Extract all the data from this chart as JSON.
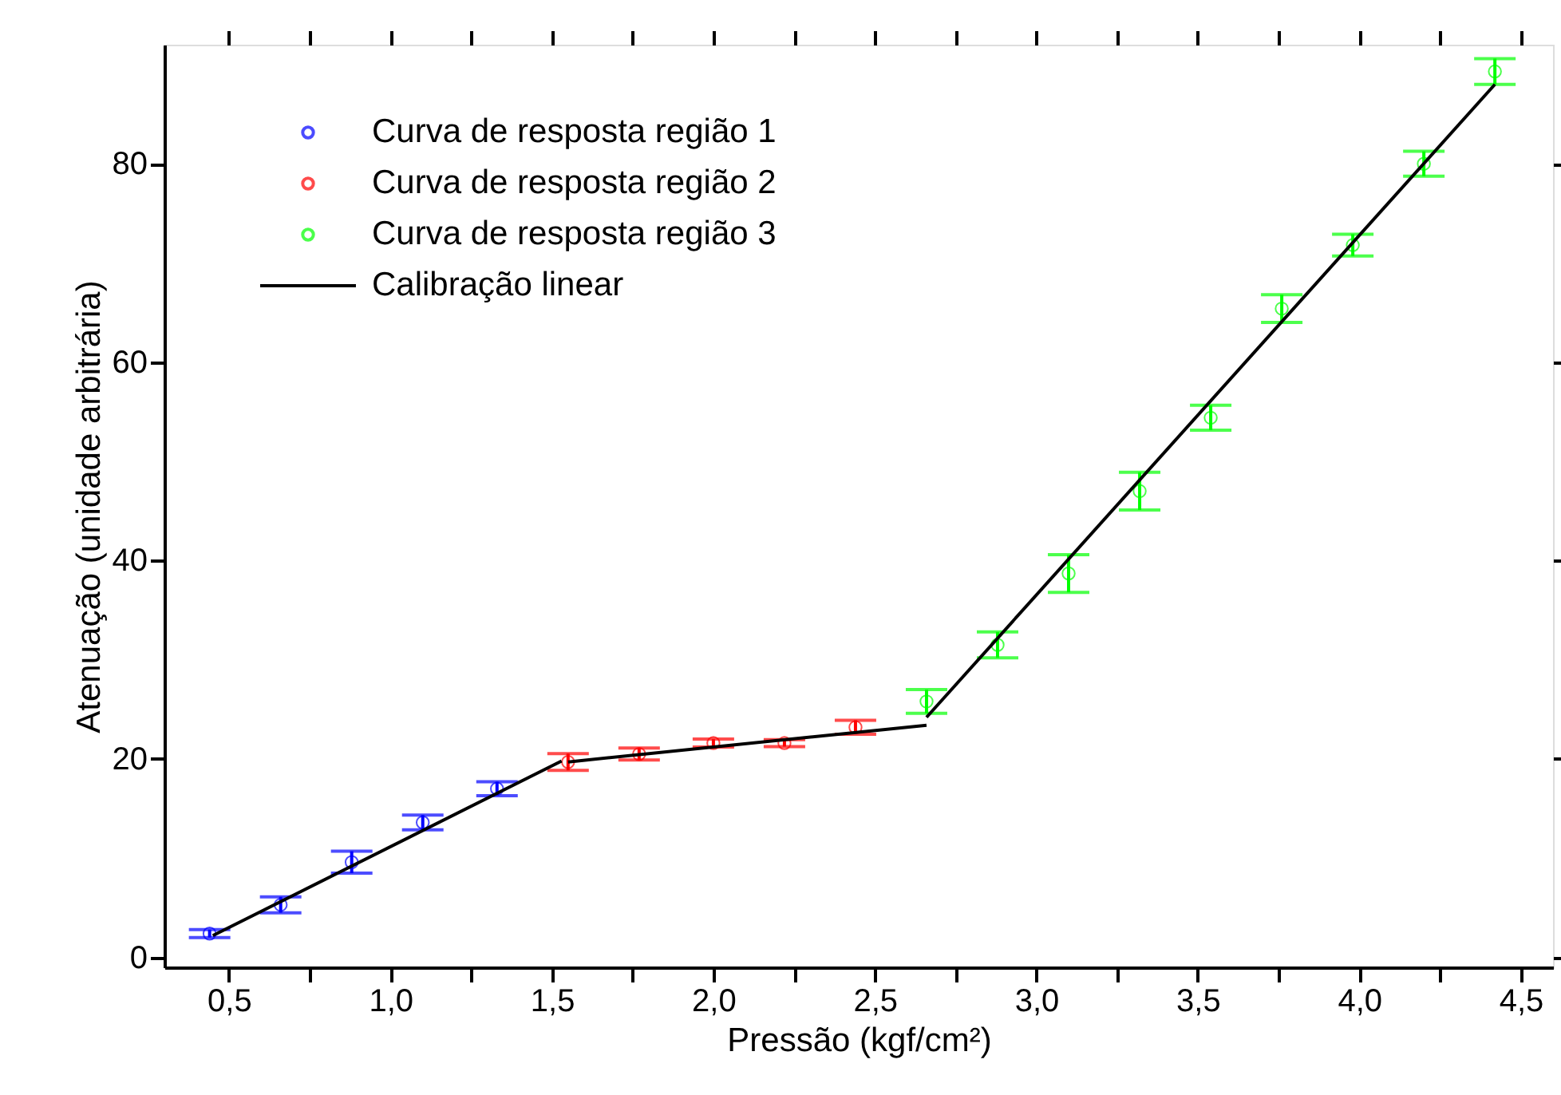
{
  "chart_data": {
    "type": "scatter",
    "xlabel": "Pressão (kgf/cm²)",
    "ylabel": "Atenuação (unidade arbitrária)",
    "xlim": [
      0.3,
      4.6
    ],
    "ylim": [
      -1,
      92
    ],
    "xticks": [
      {
        "value": 0.5,
        "label": "0,5"
      },
      {
        "value": 0.75,
        "label": null
      },
      {
        "value": 1.0,
        "label": "1,0"
      },
      {
        "value": 1.25,
        "label": null
      },
      {
        "value": 1.5,
        "label": "1,5"
      },
      {
        "value": 1.75,
        "label": null
      },
      {
        "value": 2.0,
        "label": "2,0"
      },
      {
        "value": 2.25,
        "label": null
      },
      {
        "value": 2.5,
        "label": "2,5"
      },
      {
        "value": 2.75,
        "label": null
      },
      {
        "value": 3.0,
        "label": "3,0"
      },
      {
        "value": 3.25,
        "label": null
      },
      {
        "value": 3.5,
        "label": "3,5"
      },
      {
        "value": 3.75,
        "label": null
      },
      {
        "value": 4.0,
        "label": "4,0"
      },
      {
        "value": 4.25,
        "label": null
      },
      {
        "value": 4.5,
        "label": "4,5"
      }
    ],
    "yticks": [
      0,
      20,
      40,
      60,
      80
    ],
    "grid": false,
    "legend": "top left",
    "marker": "circle",
    "series": [
      {
        "name": "Curva de resposta região 1",
        "color": "#0000ff",
        "x": [
          0.44,
          0.66,
          0.88,
          1.1,
          1.33
        ],
        "values": [
          2.4,
          5.3,
          9.6,
          13.6,
          17.0
        ],
        "errors": [
          0.4,
          0.8,
          1.1,
          0.75,
          0.7
        ]
      },
      {
        "name": "Curva de resposta região 2",
        "color": "#ff0000",
        "x": [
          1.55,
          1.77,
          2.0,
          2.22,
          2.44
        ],
        "values": [
          19.7,
          20.5,
          21.6,
          21.6,
          23.2
        ],
        "errors": [
          0.85,
          0.6,
          0.4,
          0.35,
          0.7
        ]
      },
      {
        "name": "Curva de resposta região 3",
        "color": "#00ff00",
        "x": [
          2.66,
          2.88,
          3.1,
          3.32,
          3.54,
          3.76,
          3.98,
          4.2,
          4.42
        ],
        "values": [
          25.8,
          31.5,
          38.7,
          47.0,
          54.4,
          65.4,
          71.8,
          80.0,
          89.3
        ],
        "errors": [
          1.2,
          1.3,
          1.9,
          1.9,
          1.25,
          1.4,
          1.1,
          1.25,
          1.3
        ]
      },
      {
        "name": "Calibração linear",
        "type": "line",
        "color": "#000000",
        "marker": "none",
        "line_style": "solid",
        "x": [
          0.45,
          1.53,
          null,
          1.55,
          2.66,
          null,
          2.66,
          4.42
        ],
        "values": [
          2.2,
          19.8,
          null,
          19.7,
          23.4,
          null,
          24.2,
          88.0
        ]
      }
    ]
  }
}
